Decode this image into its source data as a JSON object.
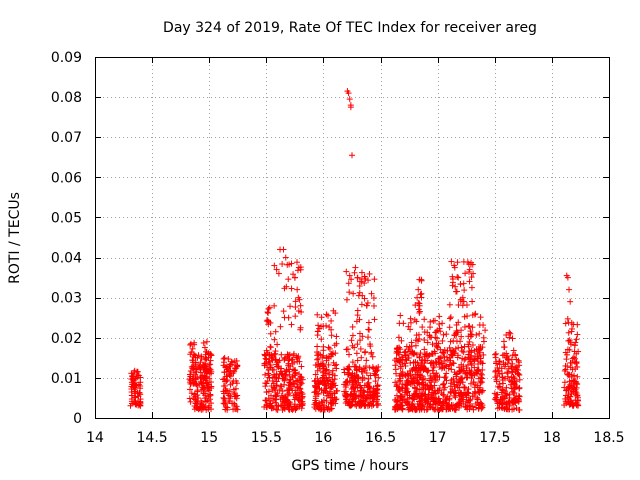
{
  "chart_data": {
    "type": "scatter",
    "title": "Day 324 of 2019, Rate Of TEC Index for receiver areg",
    "xlabel": "GPS time / hours",
    "ylabel": "ROTI / TECUs",
    "xlim": [
      14,
      18.5
    ],
    "ylim": [
      0,
      0.09
    ],
    "grid": true,
    "marker": "+",
    "color": "#ff0000",
    "xticks": [
      14,
      14.5,
      15,
      15.5,
      16,
      16.5,
      17,
      17.5,
      18,
      18.5
    ],
    "xtick_labels": [
      "14",
      "14.5",
      "15",
      "15.5",
      "16",
      "16.5",
      "17",
      "17.5",
      "18",
      "18.5"
    ],
    "yticks": [
      0,
      0.01,
      0.02,
      0.03,
      0.04,
      0.05,
      0.06,
      0.07,
      0.08,
      0.09
    ],
    "ytick_labels": [
      "0",
      "0.01",
      "0.02",
      "0.03",
      "0.04",
      "0.05",
      "0.06",
      "0.07",
      "0.08",
      "0.09"
    ],
    "clusters": [
      {
        "x0": 14.31,
        "x1": 14.4,
        "y0": 0.003,
        "y1": 0.012,
        "n": 70
      },
      {
        "x0": 14.82,
        "x1": 14.87,
        "y0": 0.004,
        "y1": 0.019,
        "n": 30
      },
      {
        "x0": 14.86,
        "x1": 15.02,
        "y0": 0.002,
        "y1": 0.016,
        "n": 150
      },
      {
        "x0": 14.95,
        "x1": 15.0,
        "y0": 0.012,
        "y1": 0.019,
        "n": 12
      },
      {
        "x0": 15.12,
        "x1": 15.25,
        "y0": 0.002,
        "y1": 0.015,
        "n": 90
      },
      {
        "x0": 15.48,
        "x1": 15.82,
        "y0": 0.002,
        "y1": 0.016,
        "n": 260
      },
      {
        "x0": 15.5,
        "x1": 15.6,
        "y0": 0.013,
        "y1": 0.028,
        "n": 28
      },
      {
        "x0": 15.6,
        "x1": 15.82,
        "y0": 0.022,
        "y1": 0.04,
        "n": 26
      },
      {
        "x0": 15.92,
        "x1": 16.12,
        "y0": 0.002,
        "y1": 0.016,
        "n": 160
      },
      {
        "x0": 15.93,
        "x1": 16.12,
        "y0": 0.016,
        "y1": 0.027,
        "n": 30
      },
      {
        "x0": 16.18,
        "x1": 16.48,
        "y0": 0.003,
        "y1": 0.013,
        "n": 220
      },
      {
        "x0": 16.2,
        "x1": 16.45,
        "y0": 0.013,
        "y1": 0.037,
        "n": 60
      },
      {
        "x0": 16.62,
        "x1": 17.4,
        "y0": 0.002,
        "y1": 0.018,
        "n": 700
      },
      {
        "x0": 16.65,
        "x1": 17.45,
        "y0": 0.018,
        "y1": 0.026,
        "n": 90
      },
      {
        "x0": 16.8,
        "x1": 16.86,
        "y0": 0.026,
        "y1": 0.035,
        "n": 12
      },
      {
        "x0": 17.1,
        "x1": 17.33,
        "y0": 0.028,
        "y1": 0.039,
        "n": 30
      },
      {
        "x0": 17.5,
        "x1": 17.72,
        "y0": 0.002,
        "y1": 0.016,
        "n": 170
      },
      {
        "x0": 17.58,
        "x1": 17.68,
        "y0": 0.016,
        "y1": 0.022,
        "n": 10
      },
      {
        "x0": 18.1,
        "x1": 18.23,
        "y0": 0.003,
        "y1": 0.014,
        "n": 90
      },
      {
        "x0": 18.12,
        "x1": 18.23,
        "y0": 0.014,
        "y1": 0.025,
        "n": 30
      }
    ],
    "points": [
      {
        "x": 16.21,
        "y": 0.0815
      },
      {
        "x": 16.22,
        "y": 0.081
      },
      {
        "x": 16.23,
        "y": 0.0795
      },
      {
        "x": 16.24,
        "y": 0.078
      },
      {
        "x": 16.24,
        "y": 0.0775
      },
      {
        "x": 16.25,
        "y": 0.0655
      },
      {
        "x": 15.62,
        "y": 0.042
      },
      {
        "x": 15.65,
        "y": 0.042
      },
      {
        "x": 15.67,
        "y": 0.04
      },
      {
        "x": 15.57,
        "y": 0.038
      },
      {
        "x": 15.59,
        "y": 0.037
      },
      {
        "x": 15.61,
        "y": 0.036
      },
      {
        "x": 15.72,
        "y": 0.0385
      },
      {
        "x": 15.75,
        "y": 0.035
      },
      {
        "x": 15.77,
        "y": 0.032
      },
      {
        "x": 15.79,
        "y": 0.0295
      },
      {
        "x": 15.8,
        "y": 0.028
      },
      {
        "x": 15.78,
        "y": 0.03
      },
      {
        "x": 15.8,
        "y": 0.0225
      },
      {
        "x": 16.2,
        "y": 0.0365
      },
      {
        "x": 16.23,
        "y": 0.0355
      },
      {
        "x": 16.28,
        "y": 0.0375
      },
      {
        "x": 16.3,
        "y": 0.035
      },
      {
        "x": 16.32,
        "y": 0.034
      },
      {
        "x": 16.26,
        "y": 0.031
      },
      {
        "x": 16.34,
        "y": 0.0305
      },
      {
        "x": 16.38,
        "y": 0.028
      },
      {
        "x": 17.12,
        "y": 0.039
      },
      {
        "x": 17.15,
        "y": 0.0375
      },
      {
        "x": 17.28,
        "y": 0.037
      },
      {
        "x": 17.31,
        "y": 0.036
      },
      {
        "x": 17.18,
        "y": 0.035
      },
      {
        "x": 17.13,
        "y": 0.033
      },
      {
        "x": 17.16,
        "y": 0.0315
      },
      {
        "x": 17.3,
        "y": 0.0325
      },
      {
        "x": 17.22,
        "y": 0.03
      },
      {
        "x": 16.84,
        "y": 0.0345
      },
      {
        "x": 16.83,
        "y": 0.032
      },
      {
        "x": 16.82,
        "y": 0.03
      },
      {
        "x": 18.13,
        "y": 0.0355
      },
      {
        "x": 18.14,
        "y": 0.035
      },
      {
        "x": 18.15,
        "y": 0.032
      },
      {
        "x": 18.16,
        "y": 0.029
      },
      {
        "x": 14.84,
        "y": 0.0185
      },
      {
        "x": 14.98,
        "y": 0.019
      },
      {
        "x": 15.53,
        "y": 0.0275
      },
      {
        "x": 15.52,
        "y": 0.024
      },
      {
        "x": 16.04,
        "y": 0.0255
      }
    ]
  }
}
